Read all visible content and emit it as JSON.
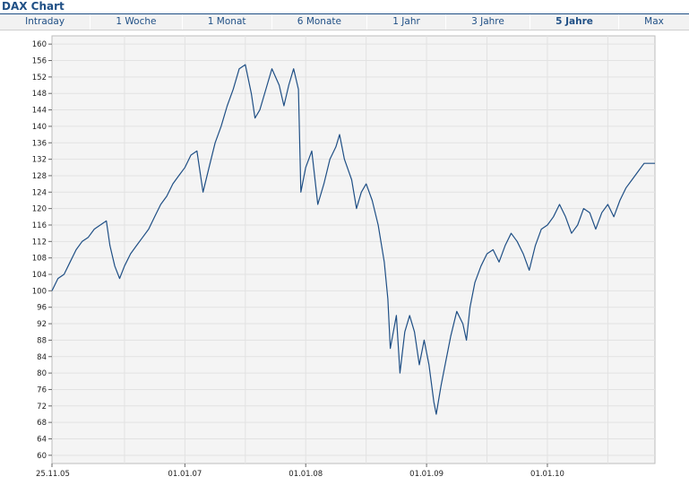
{
  "header": {
    "title": "DAX Chart"
  },
  "tabs": [
    {
      "label": "Intraday",
      "active": false
    },
    {
      "label": "1 Woche",
      "active": false
    },
    {
      "label": "1 Monat",
      "active": false
    },
    {
      "label": "6 Monate",
      "active": false
    },
    {
      "label": "1 Jahr",
      "active": false
    },
    {
      "label": "3 Jahre",
      "active": false
    },
    {
      "label": "5 Jahre",
      "active": true
    },
    {
      "label": "Max",
      "active": false
    }
  ],
  "colors": {
    "accent": "#1f4f85",
    "line": "#1f4f85",
    "plot_bg": "#f4f4f4",
    "grid": "#e2e2e2"
  },
  "chart_data": {
    "type": "line",
    "title": "",
    "xlabel": "",
    "ylabel": "",
    "ylim": [
      58,
      162
    ],
    "y_ticks": [
      60,
      64,
      68,
      72,
      76,
      80,
      84,
      88,
      92,
      96,
      100,
      104,
      108,
      112,
      116,
      120,
      124,
      128,
      132,
      136,
      140,
      144,
      148,
      152,
      156,
      160
    ],
    "x_ticks": [
      {
        "label": "25.11.05",
        "t": 0
      },
      {
        "label": "01.01.07",
        "t": 1.1
      },
      {
        "label": "01.01.08",
        "t": 2.1
      },
      {
        "label": "01.01.09",
        "t": 3.1
      },
      {
        "label": "01.01.10",
        "t": 4.1
      }
    ],
    "x_range": [
      0,
      4.99
    ],
    "grid": true,
    "series": [
      {
        "name": "",
        "values": [
          [
            0.0,
            100
          ],
          [
            0.05,
            103
          ],
          [
            0.1,
            104
          ],
          [
            0.15,
            107
          ],
          [
            0.2,
            110
          ],
          [
            0.25,
            112
          ],
          [
            0.3,
            113
          ],
          [
            0.35,
            115
          ],
          [
            0.4,
            116
          ],
          [
            0.45,
            117
          ],
          [
            0.48,
            111
          ],
          [
            0.52,
            106
          ],
          [
            0.56,
            103
          ],
          [
            0.6,
            106
          ],
          [
            0.65,
            109
          ],
          [
            0.7,
            111
          ],
          [
            0.75,
            113
          ],
          [
            0.8,
            115
          ],
          [
            0.85,
            118
          ],
          [
            0.9,
            121
          ],
          [
            0.95,
            123
          ],
          [
            1.0,
            126
          ],
          [
            1.05,
            128
          ],
          [
            1.1,
            130
          ],
          [
            1.15,
            133
          ],
          [
            1.2,
            134
          ],
          [
            1.25,
            124
          ],
          [
            1.3,
            130
          ],
          [
            1.35,
            136
          ],
          [
            1.4,
            140
          ],
          [
            1.45,
            145
          ],
          [
            1.5,
            149
          ],
          [
            1.55,
            154
          ],
          [
            1.6,
            155
          ],
          [
            1.65,
            148
          ],
          [
            1.68,
            142
          ],
          [
            1.72,
            144
          ],
          [
            1.78,
            150
          ],
          [
            1.82,
            154
          ],
          [
            1.88,
            150
          ],
          [
            1.92,
            145
          ],
          [
            1.96,
            150
          ],
          [
            2.0,
            154
          ],
          [
            2.04,
            149
          ],
          [
            2.06,
            124
          ],
          [
            2.1,
            130
          ],
          [
            2.15,
            134
          ],
          [
            2.2,
            121
          ],
          [
            2.25,
            126
          ],
          [
            2.3,
            132
          ],
          [
            2.35,
            135
          ],
          [
            2.38,
            138
          ],
          [
            2.42,
            132
          ],
          [
            2.48,
            127
          ],
          [
            2.52,
            120
          ],
          [
            2.56,
            124
          ],
          [
            2.6,
            126
          ],
          [
            2.65,
            122
          ],
          [
            2.7,
            116
          ],
          [
            2.75,
            107
          ],
          [
            2.78,
            98
          ],
          [
            2.8,
            86
          ],
          [
            2.85,
            94
          ],
          [
            2.88,
            80
          ],
          [
            2.92,
            90
          ],
          [
            2.96,
            94
          ],
          [
            3.0,
            90
          ],
          [
            3.04,
            82
          ],
          [
            3.08,
            88
          ],
          [
            3.12,
            82
          ],
          [
            3.16,
            73
          ],
          [
            3.18,
            70
          ],
          [
            3.22,
            77
          ],
          [
            3.26,
            83
          ],
          [
            3.3,
            89
          ],
          [
            3.35,
            95
          ],
          [
            3.4,
            92
          ],
          [
            3.43,
            88
          ],
          [
            3.46,
            96
          ],
          [
            3.5,
            102
          ],
          [
            3.55,
            106
          ],
          [
            3.6,
            109
          ],
          [
            3.65,
            110
          ],
          [
            3.7,
            107
          ],
          [
            3.75,
            111
          ],
          [
            3.8,
            114
          ],
          [
            3.85,
            112
          ],
          [
            3.9,
            109
          ],
          [
            3.95,
            105
          ],
          [
            4.0,
            111
          ],
          [
            4.05,
            115
          ],
          [
            4.1,
            116
          ],
          [
            4.15,
            118
          ],
          [
            4.2,
            121
          ],
          [
            4.25,
            118
          ],
          [
            4.3,
            114
          ],
          [
            4.35,
            116
          ],
          [
            4.4,
            120
          ],
          [
            4.45,
            119
          ],
          [
            4.5,
            115
          ],
          [
            4.55,
            119
          ],
          [
            4.6,
            121
          ],
          [
            4.65,
            118
          ],
          [
            4.7,
            122
          ],
          [
            4.75,
            125
          ],
          [
            4.8,
            127
          ],
          [
            4.85,
            129
          ],
          [
            4.9,
            131
          ],
          [
            4.95,
            131
          ],
          [
            4.99,
            131
          ]
        ]
      }
    ]
  }
}
